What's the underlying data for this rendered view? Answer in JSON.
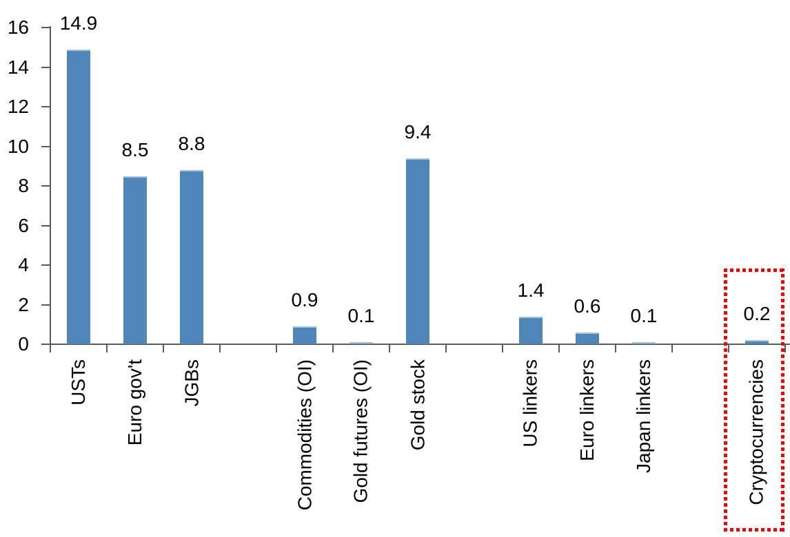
{
  "chart_data": {
    "type": "bar",
    "title": "",
    "categories": [
      "USTs",
      "Euro gov't",
      "JGBs",
      "Commodities (OI)",
      "Gold futures (OI)",
      "Gold stock",
      "US linkers",
      "Euro linkers",
      "Japan linkers",
      "Cryptocurrencies"
    ],
    "values": [
      14.9,
      8.5,
      8.8,
      0.9,
      0.1,
      9.4,
      1.4,
      0.6,
      0.1,
      0.2
    ],
    "value_labels": [
      "14.9",
      "8.5",
      "8.8",
      "0.9",
      "0.1",
      "9.4",
      "1.4",
      "0.6",
      "0.1",
      "0.2"
    ],
    "slots": [
      1,
      2,
      3,
      5,
      6,
      7,
      9,
      10,
      11,
      13
    ],
    "total_slots": 13,
    "group_gaps_after": [
      "JGBs",
      "Gold stock",
      "Japan linkers"
    ],
    "xlabel": "",
    "ylabel": "",
    "ylim": [
      0,
      16
    ],
    "yticks": [
      "0",
      "2",
      "4",
      "6",
      "8",
      "10",
      "12",
      "14",
      "16"
    ],
    "ytick_values": [
      0,
      2,
      4,
      6,
      8,
      10,
      12,
      14,
      16
    ],
    "grid": false,
    "legend": false,
    "x_labels_rotated_degrees": 90,
    "colors": {
      "bar_fill": "#4E86BC",
      "bar_top_highlight": "#A7C4DE",
      "axis": "#595959",
      "text": "#000000",
      "highlight_box": "#FF0000"
    },
    "highlight_box": {
      "category": "Cryptocurrencies",
      "style": "dotted",
      "color": "#FF0000"
    }
  }
}
